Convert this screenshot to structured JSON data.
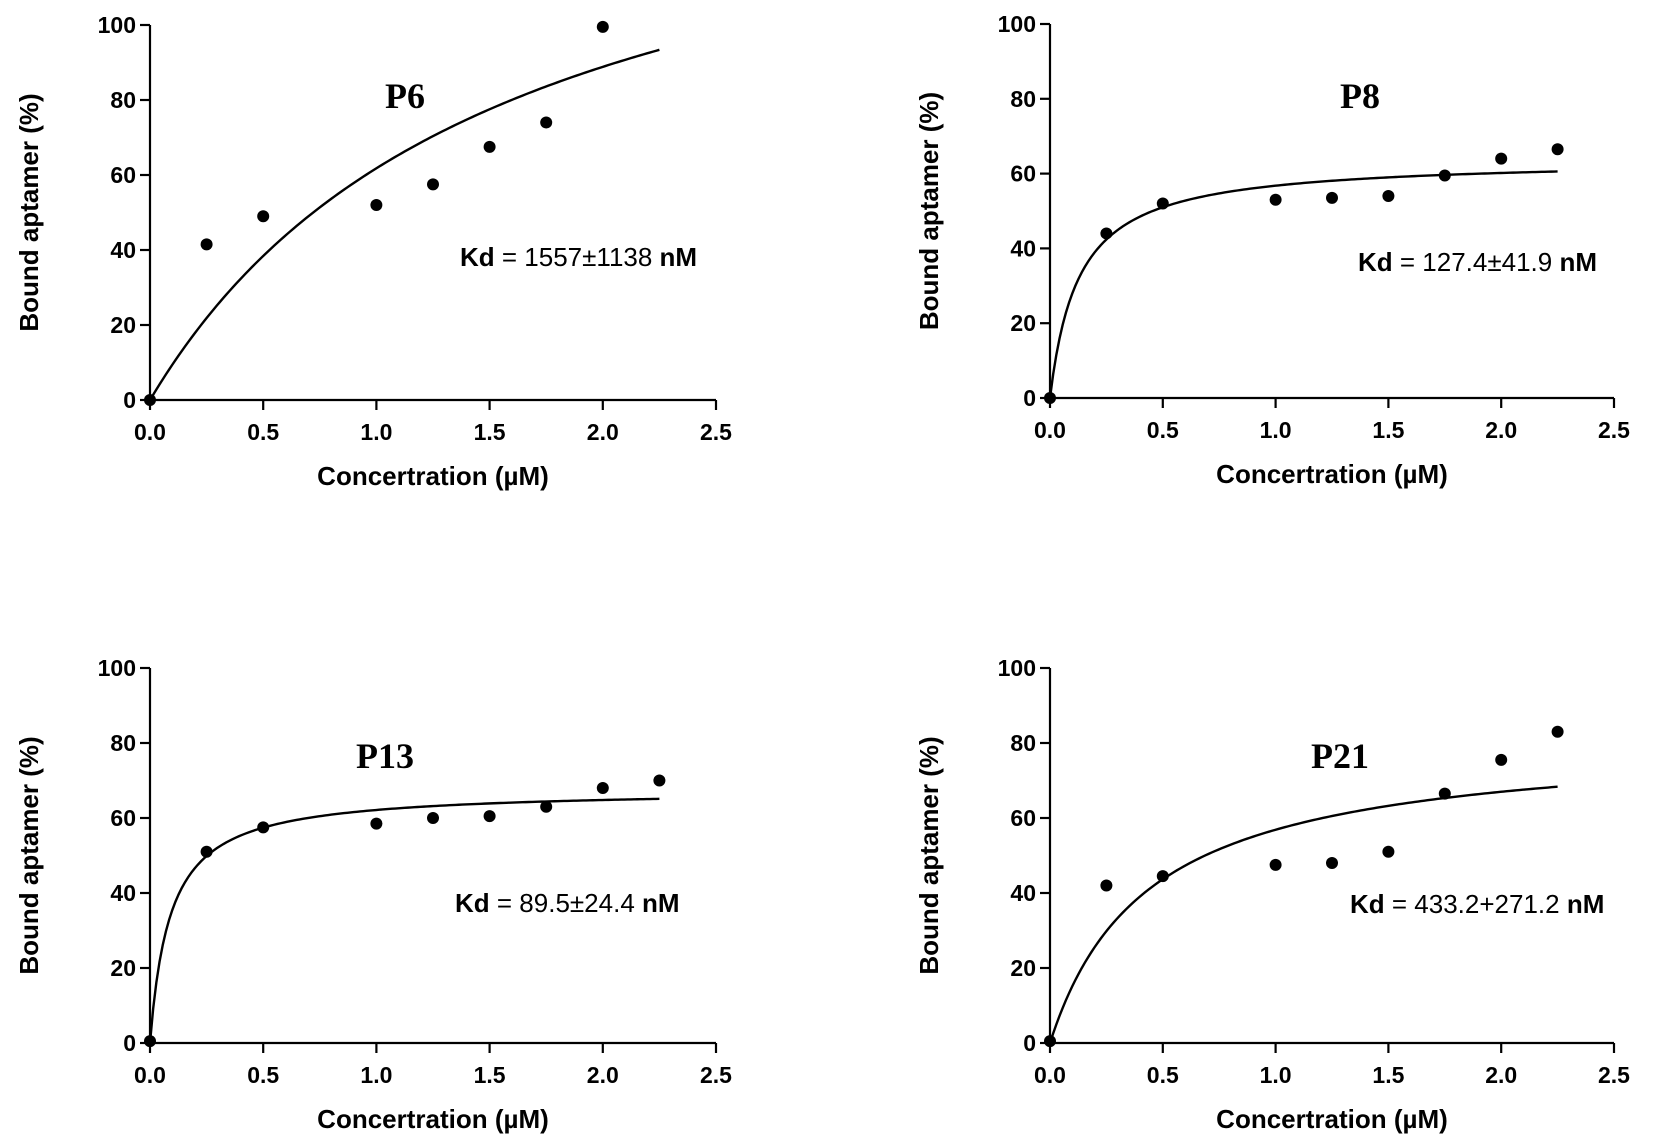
{
  "chart_data": [
    {
      "type": "scatter",
      "title": "P6",
      "xlabel": "Concertration (µM)",
      "ylabel": "Bound aptamer (%)",
      "xlim": [
        0,
        2.5
      ],
      "ylim": [
        0,
        100
      ],
      "xticks": [
        "0.0",
        "0.5",
        "1.0",
        "1.5",
        "2.0",
        "2.5"
      ],
      "yticks": [
        "0",
        "20",
        "40",
        "60",
        "80",
        "100"
      ],
      "points": {
        "x": [
          0,
          0.25,
          0.5,
          1.0,
          1.25,
          1.5,
          1.75,
          2.0
        ],
        "y": [
          0,
          41.5,
          49,
          52,
          57.5,
          67.5,
          74,
          99.5
        ]
      },
      "fit": {
        "model": "one-site binding",
        "bmax": 158,
        "kd": 1.557,
        "x_end": 2.25
      },
      "annotation": {
        "bold_prefix": "Kd",
        "text": " = 1557±1138 ",
        "bold_suffix": "nM"
      }
    },
    {
      "type": "scatter",
      "title": "P8",
      "xlabel": "Concertration (µM)",
      "ylabel": "Bound aptamer (%)",
      "xlim": [
        0,
        2.5
      ],
      "ylim": [
        0,
        100
      ],
      "xticks": [
        "0.0",
        "0.5",
        "1.0",
        "1.5",
        "2.0",
        "2.5"
      ],
      "yticks": [
        "0",
        "20",
        "40",
        "60",
        "80",
        "100"
      ],
      "points": {
        "x": [
          0,
          0.25,
          0.5,
          1.0,
          1.25,
          1.5,
          1.75,
          2.0,
          2.25
        ],
        "y": [
          0,
          44,
          52,
          53,
          53.5,
          54,
          59.5,
          64,
          66.5
        ]
      },
      "fit": {
        "model": "one-site binding",
        "bmax": 64,
        "kd": 0.1274,
        "x_end": 2.25
      },
      "annotation": {
        "bold_prefix": "Kd",
        "text": " = 127.4±41.9 ",
        "bold_suffix": "nM"
      }
    },
    {
      "type": "scatter",
      "title": "P13",
      "xlabel": "Concertration (µM)",
      "ylabel": "Bound aptamer (%)",
      "xlim": [
        0,
        2.5
      ],
      "ylim": [
        0,
        100
      ],
      "xticks": [
        "0.0",
        "0.5",
        "1.0",
        "1.5",
        "2.0",
        "2.5"
      ],
      "yticks": [
        "0",
        "20",
        "40",
        "60",
        "80",
        "100"
      ],
      "points": {
        "x": [
          0,
          0.25,
          0.5,
          1.0,
          1.25,
          1.5,
          1.75,
          2.0,
          2.25
        ],
        "y": [
          0.5,
          51,
          57.5,
          58.5,
          60,
          60.5,
          63,
          68,
          70
        ]
      },
      "fit": {
        "model": "one-site binding",
        "bmax": 67.7,
        "kd": 0.0895,
        "x_end": 2.25
      },
      "annotation": {
        "bold_prefix": "Kd",
        "text": "  = 89.5±24.4 ",
        "bold_suffix": "nM"
      }
    },
    {
      "type": "scatter",
      "title": "P21",
      "xlabel": "Concertration (µM)",
      "ylabel": "Bound aptamer (%)",
      "xlim": [
        0,
        2.5
      ],
      "ylim": [
        0,
        100
      ],
      "xticks": [
        "0.0",
        "0.5",
        "1.0",
        "1.5",
        "2.0",
        "2.5"
      ],
      "yticks": [
        "0",
        "20",
        "40",
        "60",
        "80",
        "100"
      ],
      "points": {
        "x": [
          0,
          0.25,
          0.5,
          1.0,
          1.25,
          1.5,
          1.75,
          2.0,
          2.25
        ],
        "y": [
          0.5,
          42,
          44.5,
          47.5,
          48,
          51,
          66.5,
          75.5,
          83
        ]
      },
      "fit": {
        "model": "one-site binding",
        "bmax": 81.5,
        "kd": 0.4332,
        "x_end": 2.25
      },
      "annotation": {
        "bold_prefix": "Kd",
        "text": " = 433.2+271.2 ",
        "bold_suffix": "nM"
      }
    }
  ]
}
